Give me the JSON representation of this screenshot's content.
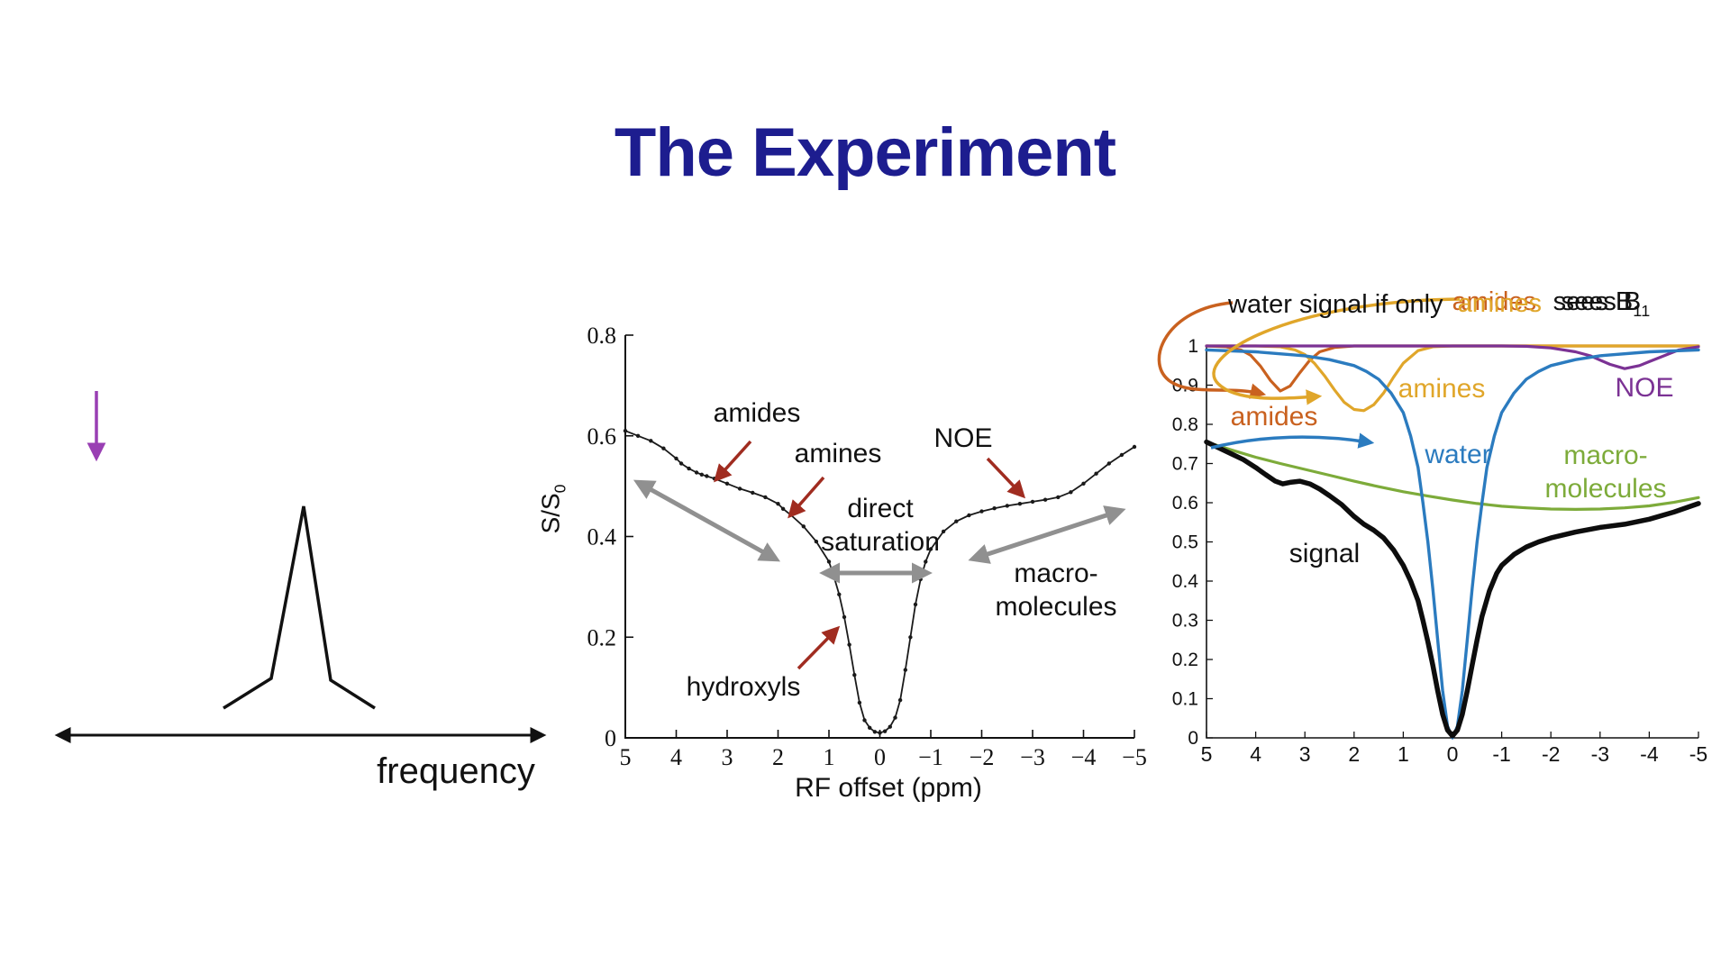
{
  "slide": {
    "title": "The Experiment"
  },
  "palette": {
    "title_navy": "#1d1d8f",
    "amides_orange": "#c9611f",
    "amines_gold": "#e0a62a",
    "noe_purple": "#7b3294",
    "water_blue": "#2b7bbf",
    "macro_green": "#7dab3a",
    "annotation_red": "#a02c20",
    "arrow_gray": "#909090",
    "down_arrow_purple": "#993fb3",
    "line_black": "#111111"
  },
  "left_panel": {
    "frequency_label": "frequency"
  },
  "chart_data": [
    {
      "type": "line",
      "title": "",
      "xlabel": "RF offset (ppm)",
      "ylabel_main": "S/S",
      "ylabel_sub": "0",
      "xlim": [
        5,
        -5
      ],
      "ylim": [
        0,
        0.8
      ],
      "grid": false,
      "xticks": {
        "values": [
          5,
          4,
          3,
          2,
          1,
          0,
          -1,
          -2,
          -3,
          -4,
          -5
        ],
        "labels": [
          "5",
          "4",
          "3",
          "2",
          "1",
          "0",
          "−1",
          "−2",
          "−3",
          "−4",
          "−5"
        ]
      },
      "yticks": {
        "values": [
          0,
          0.2,
          0.4,
          0.6,
          0.8
        ],
        "labels": [
          "0",
          "0.2",
          "0.4",
          "0.6",
          "0.8"
        ]
      },
      "series": [
        {
          "name": "z-spectrum",
          "color": "#1a1a1a",
          "width": 1.8,
          "dots": true,
          "x": [
            5,
            4.75,
            4.5,
            4.25,
            4,
            3.9,
            3.75,
            3.6,
            3.5,
            3.4,
            3.25,
            3,
            2.75,
            2.5,
            2.25,
            2,
            1.9,
            1.75,
            1.5,
            1.25,
            1,
            0.9,
            0.8,
            0.7,
            0.6,
            0.5,
            0.4,
            0.3,
            0.2,
            0.1,
            0,
            -0.1,
            -0.2,
            -0.3,
            -0.4,
            -0.5,
            -0.6,
            -0.7,
            -0.8,
            -0.9,
            -1,
            -1.25,
            -1.5,
            -1.75,
            -2,
            -2.25,
            -2.5,
            -2.75,
            -3,
            -3.25,
            -3.5,
            -3.75,
            -4,
            -4.25,
            -4.5,
            -4.75,
            -5
          ],
          "y": [
            0.61,
            0.6,
            0.59,
            0.575,
            0.555,
            0.545,
            0.535,
            0.527,
            0.523,
            0.52,
            0.515,
            0.505,
            0.495,
            0.487,
            0.478,
            0.465,
            0.455,
            0.443,
            0.42,
            0.39,
            0.35,
            0.32,
            0.285,
            0.24,
            0.185,
            0.125,
            0.07,
            0.035,
            0.02,
            0.012,
            0.01,
            0.013,
            0.022,
            0.04,
            0.075,
            0.135,
            0.2,
            0.265,
            0.315,
            0.35,
            0.375,
            0.41,
            0.43,
            0.442,
            0.45,
            0.456,
            0.461,
            0.465,
            0.469,
            0.473,
            0.478,
            0.488,
            0.505,
            0.525,
            0.545,
            0.562,
            0.578
          ]
        }
      ],
      "annotations": {
        "amides": "amides",
        "amines": "amines",
        "noe": "NOE",
        "direct_line1": "direct",
        "direct_line2": "saturation",
        "macro_line1": "macro-",
        "macro_line2": "molecules",
        "hydroxyls": "hydroxyls"
      }
    },
    {
      "type": "line",
      "title": "",
      "xlabel": "",
      "ylabel": "",
      "xlim": [
        5,
        -5
      ],
      "ylim": [
        0,
        1
      ],
      "grid": false,
      "caption": {
        "prefix": "water signal if only",
        "overlap_word_1": "amides",
        "overlap_word_2": "amines",
        "suffix": "sees B",
        "suffix_sub": "1"
      },
      "xticks": {
        "values": [
          5,
          4,
          3,
          2,
          1,
          0,
          -1,
          -2,
          -3,
          -4,
          -5
        ],
        "labels": [
          "5",
          "4",
          "3",
          "2",
          "1",
          "0",
          "-1",
          "-2",
          "-3",
          "-4",
          "-5"
        ]
      },
      "yticks": {
        "values": [
          0,
          0.1,
          0.2,
          0.3,
          0.4,
          0.5,
          0.6,
          0.7,
          0.8,
          0.9,
          1
        ],
        "labels": [
          "0",
          "0.1",
          "0.2",
          "0.3",
          "0.4",
          "0.5",
          "0.6",
          "0.7",
          "0.8",
          "0.9",
          "1"
        ]
      },
      "series": [
        {
          "name": "macromolecules",
          "color": "#7dab3a",
          "width": 3.2,
          "dots": false,
          "x": [
            5,
            4.5,
            4,
            3.5,
            3,
            2.5,
            2,
            1.5,
            1,
            0.5,
            0,
            -0.5,
            -1,
            -1.5,
            -2,
            -2.5,
            -3,
            -3.5,
            -4,
            -4.5,
            -5
          ],
          "y": [
            0.755,
            0.735,
            0.716,
            0.7,
            0.685,
            0.67,
            0.655,
            0.641,
            0.628,
            0.617,
            0.607,
            0.598,
            0.591,
            0.587,
            0.584,
            0.583,
            0.584,
            0.587,
            0.592,
            0.601,
            0.613
          ]
        },
        {
          "name": "amides",
          "color": "#c9611f",
          "width": 3.2,
          "dots": false,
          "x": [
            5,
            4.6,
            4.3,
            4.1,
            3.9,
            3.7,
            3.5,
            3.3,
            3.1,
            2.9,
            2.7,
            2.4,
            2,
            1.5,
            1,
            0,
            -1,
            -2,
            -3,
            -4,
            -5
          ],
          "y": [
            1,
            0.998,
            0.99,
            0.976,
            0.948,
            0.912,
            0.885,
            0.898,
            0.932,
            0.964,
            0.985,
            0.996,
            1,
            1,
            1,
            1,
            1,
            1,
            1,
            1,
            1
          ]
        },
        {
          "name": "amines",
          "color": "#e0a62a",
          "width": 3.2,
          "dots": false,
          "x": [
            5,
            4,
            3.5,
            3.2,
            3,
            2.8,
            2.6,
            2.4,
            2.2,
            2,
            1.8,
            1.6,
            1.4,
            1.2,
            1,
            0.7,
            0.4,
            0,
            -1,
            -2,
            -3,
            -4,
            -5
          ],
          "y": [
            1,
            1,
            0.998,
            0.99,
            0.978,
            0.955,
            0.924,
            0.888,
            0.856,
            0.838,
            0.835,
            0.85,
            0.88,
            0.92,
            0.956,
            0.988,
            0.998,
            1,
            1,
            1,
            1,
            1,
            1
          ]
        },
        {
          "name": "NOE",
          "color": "#7b3294",
          "width": 3.2,
          "dots": false,
          "x": [
            5,
            4,
            3,
            2,
            1,
            0,
            -1,
            -1.5,
            -2,
            -2.5,
            -2.8,
            -3,
            -3.2,
            -3.5,
            -3.8,
            -4,
            -4.3,
            -4.6,
            -5
          ],
          "y": [
            1,
            1,
            1,
            1,
            1,
            1,
            1,
            0.999,
            0.995,
            0.985,
            0.975,
            0.964,
            0.953,
            0.942,
            0.95,
            0.96,
            0.975,
            0.99,
            0.998
          ]
        },
        {
          "name": "water",
          "color": "#2b7bbf",
          "width": 3.4,
          "dots": false,
          "x": [
            5,
            4,
            3,
            2.5,
            2,
            1.75,
            1.5,
            1.25,
            1,
            0.85,
            0.7,
            0.6,
            0.5,
            0.4,
            0.3,
            0.2,
            0.1,
            0,
            -0.1,
            -0.2,
            -0.3,
            -0.4,
            -0.5,
            -0.6,
            -0.7,
            -0.85,
            -1,
            -1.25,
            -1.5,
            -1.75,
            -2,
            -2.5,
            -3,
            -4,
            -5
          ],
          "y": [
            0.99,
            0.985,
            0.975,
            0.965,
            0.95,
            0.935,
            0.915,
            0.88,
            0.83,
            0.77,
            0.69,
            0.6,
            0.5,
            0.38,
            0.25,
            0.12,
            0.03,
            0,
            0.03,
            0.12,
            0.25,
            0.38,
            0.5,
            0.6,
            0.69,
            0.77,
            0.83,
            0.88,
            0.915,
            0.935,
            0.95,
            0.965,
            0.975,
            0.985,
            0.99
          ]
        },
        {
          "name": "signal",
          "color": "#0d0d0d",
          "width": 5.5,
          "dots": false,
          "x": [
            5,
            4.75,
            4.5,
            4.25,
            4,
            3.8,
            3.6,
            3.45,
            3.3,
            3.1,
            2.9,
            2.7,
            2.5,
            2.25,
            2,
            1.8,
            1.6,
            1.4,
            1.2,
            1,
            0.85,
            0.7,
            0.6,
            0.5,
            0.4,
            0.3,
            0.2,
            0.1,
            0,
            -0.1,
            -0.2,
            -0.3,
            -0.4,
            -0.5,
            -0.6,
            -0.75,
            -0.9,
            -1,
            -1.25,
            -1.5,
            -1.75,
            -2,
            -2.5,
            -3,
            -3.5,
            -4,
            -4.5,
            -5
          ],
          "y": [
            0.755,
            0.74,
            0.725,
            0.71,
            0.69,
            0.672,
            0.655,
            0.648,
            0.652,
            0.655,
            0.648,
            0.635,
            0.618,
            0.595,
            0.565,
            0.545,
            0.53,
            0.51,
            0.48,
            0.44,
            0.4,
            0.35,
            0.3,
            0.245,
            0.185,
            0.12,
            0.06,
            0.02,
            0.005,
            0.02,
            0.06,
            0.12,
            0.185,
            0.25,
            0.31,
            0.375,
            0.42,
            0.44,
            0.468,
            0.487,
            0.5,
            0.51,
            0.525,
            0.537,
            0.545,
            0.558,
            0.576,
            0.598
          ]
        }
      ],
      "labels": {
        "amides": "amides",
        "amines": "amines",
        "noe": "NOE",
        "water": "water",
        "macro_line1": "macro-",
        "macro_line2": "molecules",
        "signal": "signal"
      }
    }
  ]
}
